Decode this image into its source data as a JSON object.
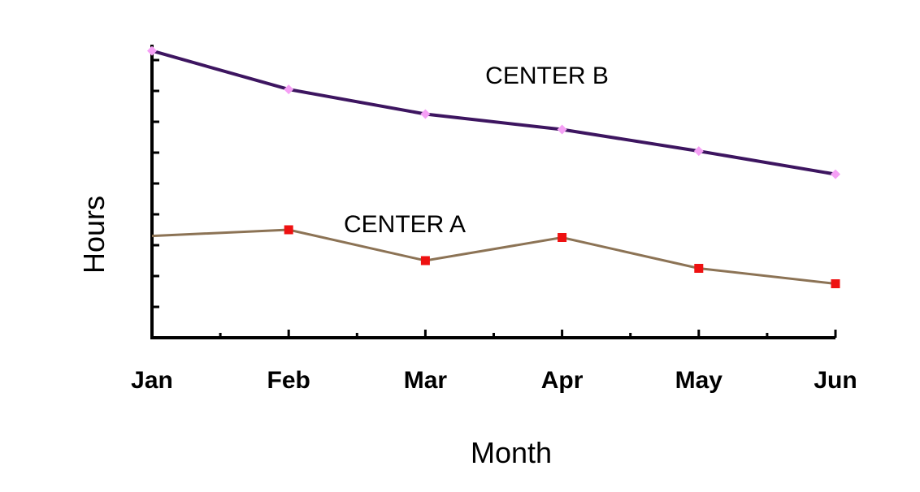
{
  "chart_data": {
    "type": "line",
    "categories": [
      "Jan",
      "Feb",
      "Mar",
      "Apr",
      "May",
      "Jun"
    ],
    "xlabel": "Month",
    "ylabel": "Hours",
    "ylim": [
      0,
      9.5
    ],
    "y_ticks_labeled": false,
    "grid": false,
    "legend": "inline labels",
    "series": [
      {
        "name": "CENTER B",
        "values": [
          9.3,
          8.05,
          7.25,
          6.75,
          6.05,
          5.3
        ],
        "line_color": "#3d1560",
        "marker": "diamond",
        "marker_color": "#f5a0f5"
      },
      {
        "name": "CENTER A",
        "values": [
          3.3,
          3.5,
          2.5,
          3.25,
          2.25,
          1.75
        ],
        "line_color": "#8c7355",
        "marker": "square",
        "marker_color": "#ee1111"
      }
    ]
  }
}
